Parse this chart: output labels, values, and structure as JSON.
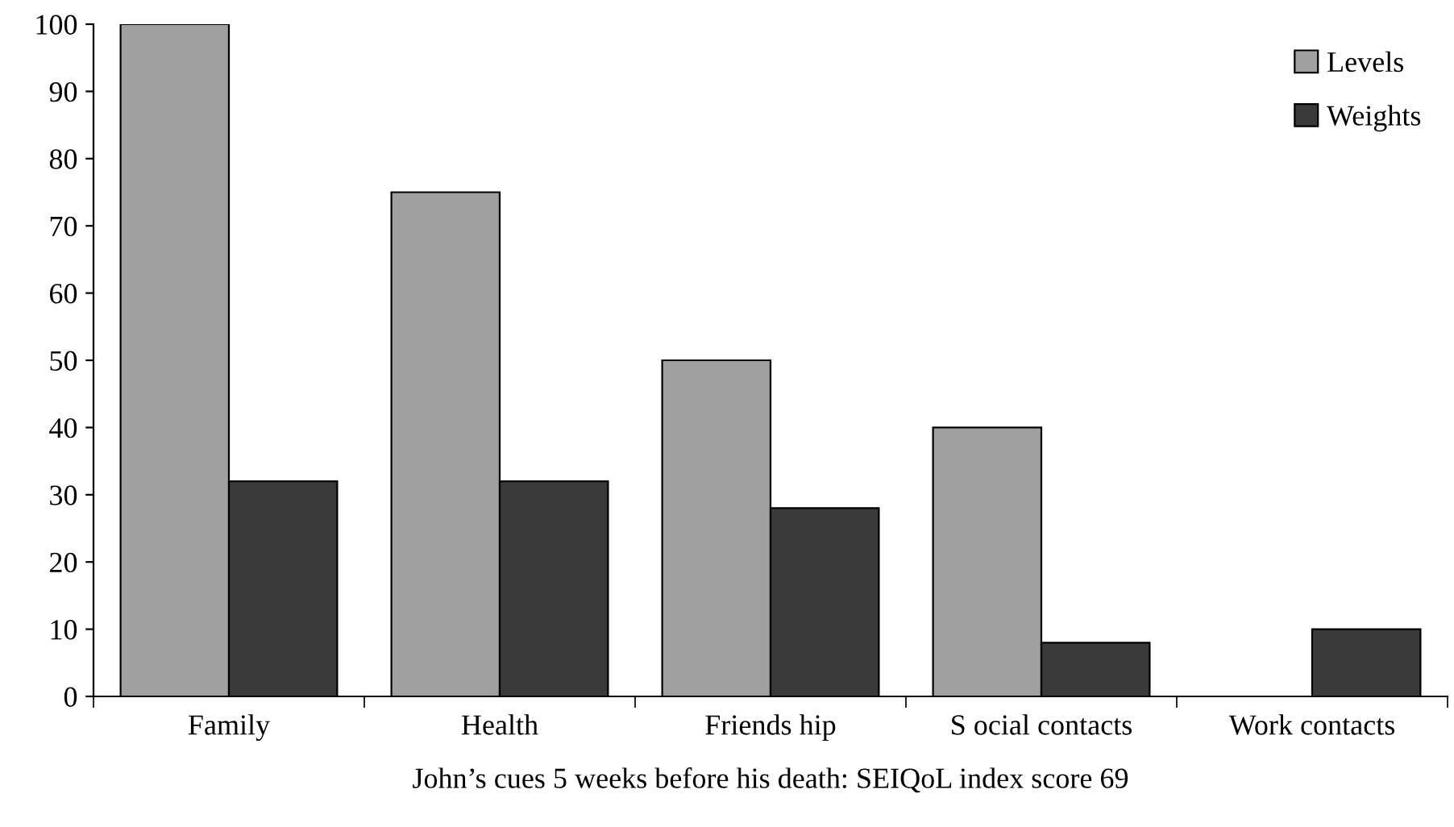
{
  "chart_data": {
    "type": "bar",
    "xlabel": "John’s cues 5 weeks before his death: SEIQoL index score 69",
    "categories": [
      "Family",
      "Health",
      "Friends hip",
      "S ocial contacts",
      "Work contacts"
    ],
    "series": [
      {
        "name": "Levels",
        "color": "#a0a0a0",
        "values": [
          100,
          75,
          50,
          40,
          null
        ]
      },
      {
        "name": "Weights",
        "color": "#3a3a3a",
        "values": [
          32,
          32,
          28,
          8,
          10
        ]
      }
    ],
    "ylim": [
      0,
      100
    ],
    "yticks": [
      0,
      10,
      20,
      30,
      40,
      50,
      60,
      70,
      80,
      90,
      100
    ],
    "grid": false,
    "legend": "top right"
  }
}
